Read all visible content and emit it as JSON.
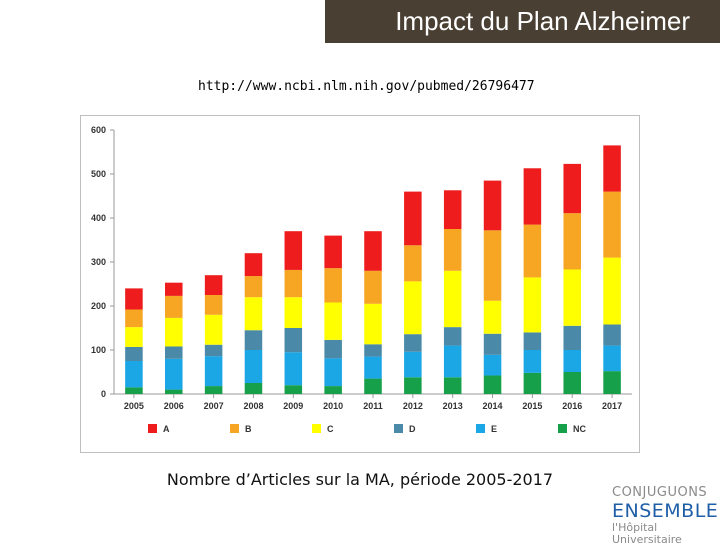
{
  "header": {
    "title": "Impact du Plan Alzheimer"
  },
  "source_url": "http://www.ncbi.nlm.nih.gov/pubmed/26796477",
  "caption": "Nombre d’Articles sur la MA, période 2005-2017",
  "logo": {
    "line1": "CONJUGUONS",
    "line2": "ENSEMBLE",
    "line3": "l'Hôpital Universitaire"
  },
  "chart_data": {
    "type": "bar",
    "stacked": true,
    "categories": [
      "2005",
      "2006",
      "2007",
      "2008",
      "2009",
      "2010",
      "2011",
      "2012",
      "2013",
      "2014",
      "2015",
      "2016",
      "2017"
    ],
    "series": [
      {
        "name": "NC",
        "color": "#17a04a",
        "values": [
          15,
          10,
          18,
          25,
          20,
          18,
          35,
          38,
          38,
          42,
          48,
          50,
          52
        ]
      },
      {
        "name": "E",
        "color": "#1ba6e6",
        "values": [
          60,
          70,
          68,
          75,
          75,
          63,
          50,
          58,
          72,
          47,
          52,
          50,
          58
        ]
      },
      {
        "name": "D",
        "color": "#4a8aa8",
        "values": [
          32,
          28,
          26,
          45,
          55,
          42,
          28,
          40,
          42,
          48,
          40,
          55,
          48
        ]
      },
      {
        "name": "C",
        "color": "#ffff00",
        "values": [
          45,
          65,
          68,
          75,
          70,
          85,
          92,
          120,
          128,
          75,
          125,
          128,
          152
        ]
      },
      {
        "name": "B",
        "color": "#f6a623",
        "values": [
          40,
          50,
          45,
          48,
          62,
          78,
          75,
          82,
          95,
          160,
          120,
          128,
          150
        ]
      },
      {
        "name": "A",
        "color": "#ee1c1c",
        "values": [
          48,
          30,
          45,
          52,
          88,
          74,
          90,
          122,
          88,
          113,
          128,
          112,
          105
        ]
      }
    ],
    "legend_order": [
      "A",
      "B",
      "C",
      "D",
      "E",
      "NC"
    ],
    "ylim": [
      0,
      600
    ],
    "yticks": [
      0,
      100,
      200,
      300,
      400,
      500,
      600
    ],
    "grid": false,
    "legend_position": "bottom"
  }
}
